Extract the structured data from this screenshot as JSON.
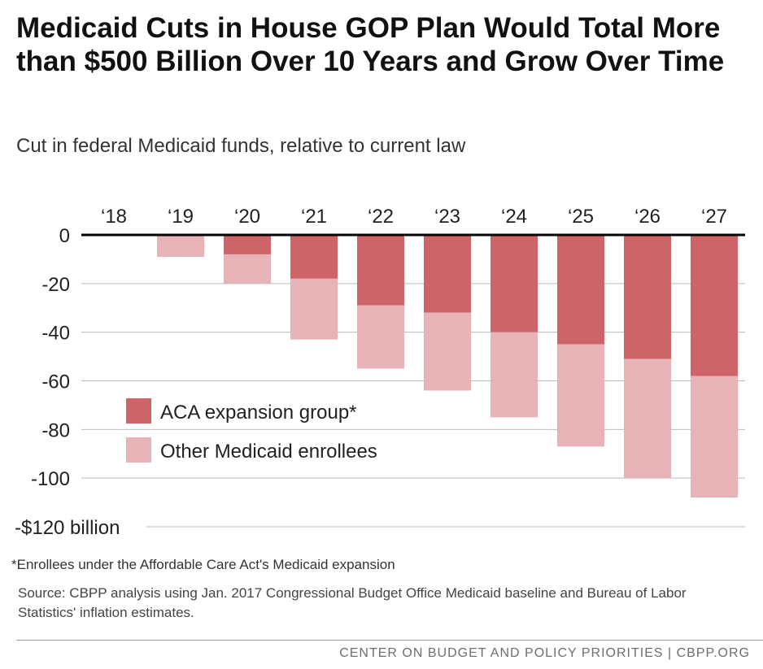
{
  "title": "Medicaid Cuts in House GOP Plan Would Total More than $500 Billion Over 10 Years and Grow Over Time",
  "subtitle": "Cut in federal Medicaid funds, relative to current law",
  "footnote": "*Enrollees under the Affordable Care Act's Medicaid expansion",
  "source": "Source: CBPP analysis using Jan. 2017 Congressional Budget Office Medicaid baseline and Bureau of Labor Statistics' inflation estimates.",
  "footer": "CENTER ON BUDGET AND POLICY PRIORITIES | CBPP.ORG",
  "colors": {
    "aca": "#cd6468",
    "other": "#e8b3b6",
    "axis": "#000000",
    "grid": "#bbbbbb"
  },
  "chart_data": {
    "type": "bar",
    "stacked": true,
    "categories": [
      "‘18",
      "‘19",
      "‘20",
      "‘21",
      "‘22",
      "‘23",
      "‘24",
      "‘25",
      "‘26",
      "‘27"
    ],
    "series": [
      {
        "name": "ACA expansion group*",
        "key": "aca",
        "values": [
          0,
          0,
          -8,
          -18,
          -29,
          -32,
          -40,
          -45,
          -51,
          -58
        ]
      },
      {
        "name": "Other Medicaid enrollees",
        "key": "other",
        "values": [
          0,
          -9,
          -12,
          -25,
          -26,
          -32,
          -35,
          -42,
          -49,
          -50
        ]
      }
    ],
    "totals": [
      0,
      -9,
      -20,
      -43,
      -55,
      -64,
      -75,
      -87,
      -100,
      -108
    ],
    "ylim": [
      -120,
      0
    ],
    "yticks": [
      0,
      -20,
      -40,
      -60,
      -80,
      -100,
      -120
    ],
    "ytick_labels": [
      "0",
      "-20",
      "-40",
      "-60",
      "-80",
      "-100",
      "-$120 billion"
    ],
    "xlabels_position": "top",
    "legend_position": "lower-left",
    "grid": true,
    "title": "Medicaid Cuts in House GOP Plan Would Total More than $500 Billion Over 10 Years and Grow Over Time",
    "ylabel": "Cut in federal Medicaid funds, relative to current law"
  }
}
